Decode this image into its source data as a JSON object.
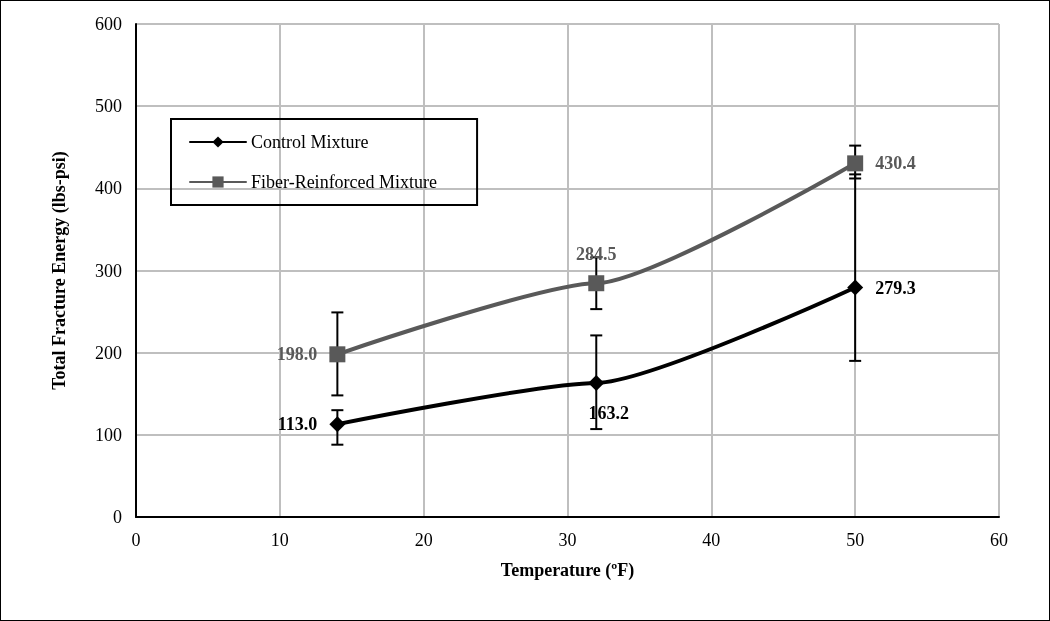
{
  "chart_data": {
    "type": "line",
    "xlabel": "Temperature (ºF)",
    "ylabel": "Total Fracture Energy (lbs-psi)",
    "x": [
      14,
      32,
      50
    ],
    "series": [
      {
        "name": "Control Mixture",
        "color": "#000000",
        "marker": "diamond",
        "values": [
          113.0,
          163.2,
          279.3
        ],
        "value_labels": [
          "113.0",
          "163.2",
          "279.3"
        ],
        "errors": [
          [
            88,
            130
          ],
          [
            107,
            221
          ],
          [
            190,
            417
          ]
        ]
      },
      {
        "name": "Fiber-Reinforced Mixture",
        "color": "#595959",
        "marker": "square",
        "values": [
          198.0,
          284.5,
          430.4
        ],
        "value_labels": [
          "198.0",
          "284.5",
          "430.4"
        ],
        "errors": [
          [
            148,
            249
          ],
          [
            253,
            316
          ],
          [
            412,
            452
          ]
        ]
      }
    ],
    "xlim": [
      0,
      60
    ],
    "xticks": [
      0,
      10,
      20,
      30,
      40,
      50,
      60
    ],
    "ylim": [
      0,
      600
    ],
    "yticks": [
      0,
      100,
      200,
      300,
      400,
      500,
      600
    ],
    "grid": true,
    "legend": "top left",
    "line_style": "solid"
  }
}
